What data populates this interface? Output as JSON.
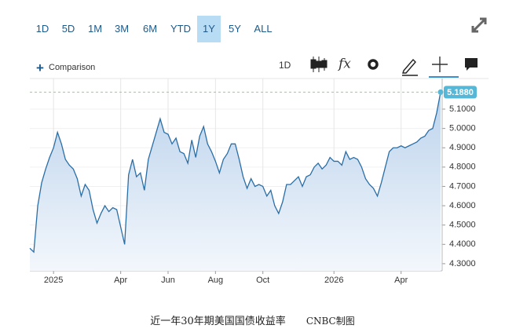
{
  "toolbar": {
    "ranges": [
      "1D",
      "5D",
      "1M",
      "3M",
      "6M",
      "YTD",
      "1Y",
      "5Y",
      "ALL"
    ],
    "comparison": "Comparison",
    "interval": "1D"
  },
  "chart_data": {
    "type": "line",
    "categories": [
      null,
      null,
      null,
      null,
      null,
      null,
      "2025",
      null,
      null,
      null,
      null,
      null,
      null,
      null,
      null,
      null,
      null,
      null,
      null,
      null,
      null,
      null,
      null,
      "Apr",
      null,
      null,
      null,
      null,
      null,
      null,
      null,
      null,
      null,
      null,
      null,
      "Jun",
      null,
      null,
      null,
      null,
      null,
      null,
      null,
      null,
      null,
      null,
      null,
      "Aug",
      null,
      null,
      null,
      null,
      null,
      null,
      null,
      null,
      null,
      null,
      null,
      "Oct",
      null,
      null,
      null,
      null,
      null,
      null,
      null,
      null,
      null,
      null,
      null,
      null,
      null,
      null,
      null,
      null,
      null,
      "2026",
      null,
      null,
      null,
      null,
      null,
      null,
      null,
      null,
      null,
      null,
      null,
      null,
      null,
      null,
      null,
      null,
      "Apr",
      null,
      null,
      null,
      null,
      null,
      null,
      null,
      null,
      null,
      null
    ],
    "values": [
      4.38,
      4.36,
      4.6,
      4.72,
      4.79,
      4.85,
      4.9,
      4.98,
      4.92,
      4.84,
      4.81,
      4.79,
      4.74,
      4.65,
      4.71,
      4.68,
      4.58,
      4.51,
      4.56,
      4.6,
      4.57,
      4.59,
      4.58,
      4.49,
      4.4,
      4.76,
      4.84,
      4.75,
      4.77,
      4.68,
      4.84,
      4.91,
      4.98,
      5.05,
      4.98,
      4.97,
      4.92,
      4.95,
      4.88,
      4.87,
      4.82,
      4.94,
      4.85,
      4.96,
      5.01,
      4.92,
      4.88,
      4.83,
      4.77,
      4.84,
      4.87,
      4.92,
      4.92,
      4.84,
      4.75,
      4.69,
      4.74,
      4.7,
      4.71,
      4.7,
      4.65,
      4.68,
      4.6,
      4.56,
      4.62,
      4.71,
      4.71,
      4.73,
      4.75,
      4.7,
      4.75,
      4.76,
      4.8,
      4.82,
      4.79,
      4.81,
      4.85,
      4.83,
      4.83,
      4.81,
      4.88,
      4.84,
      4.85,
      4.84,
      4.8,
      4.74,
      4.71,
      4.69,
      4.65,
      4.72,
      4.8,
      4.88,
      4.9,
      4.9,
      4.91,
      4.9,
      4.91,
      4.92,
      4.93,
      4.95,
      4.96,
      4.99,
      5.0,
      5.08,
      5.188
    ],
    "color": "#2a6ea6",
    "ylim": [
      4.263,
      5.226
    ],
    "yticks": [
      {
        "value": 4.3,
        "label": "4.3000"
      },
      {
        "value": 4.4,
        "label": "4.4000"
      },
      {
        "value": 4.5,
        "label": "4.5000"
      },
      {
        "value": 4.6,
        "label": "4.6000"
      },
      {
        "value": 4.7,
        "label": "4.7000"
      },
      {
        "value": 4.8,
        "label": "4.8000"
      },
      {
        "value": 4.9,
        "label": "4.9000"
      },
      {
        "value": 5.0,
        "label": "5.0000"
      },
      {
        "value": 5.1,
        "label": "5.1000"
      }
    ],
    "last_price": {
      "value": 5.188,
      "label": "5.1880"
    },
    "grid": true
  },
  "caption": {
    "title": "近一年30年期美国国债收益率",
    "source": "CNBC制图"
  }
}
